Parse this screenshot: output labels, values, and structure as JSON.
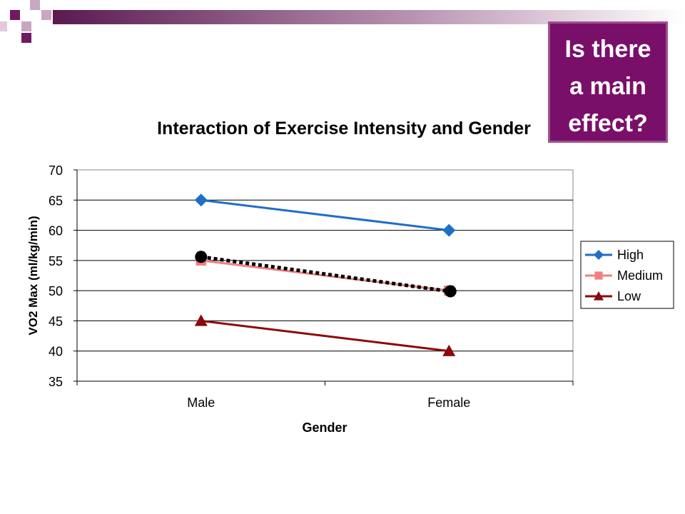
{
  "slide": {
    "colors": {
      "accent": "#7a0f6a",
      "bar_gradient_start": "#5a1a50",
      "callout_border": "#a0528f"
    }
  },
  "callout": {
    "lines": [
      "Is there",
      "a main",
      "effect?"
    ]
  },
  "chart_data": {
    "type": "line",
    "title": "Interaction of Exercise Intensity and Gender",
    "xlabel": "Gender",
    "ylabel": "VO2 Max (ml/kg/min)",
    "categories": [
      "Male",
      "Female"
    ],
    "ylim": [
      35,
      70
    ],
    "yticks": [
      35,
      40,
      45,
      50,
      55,
      60,
      65,
      70
    ],
    "grid": true,
    "legend_position": "right",
    "series": [
      {
        "name": "High",
        "values": [
          65,
          60
        ],
        "color": "#1f6fc4",
        "marker": "diamond"
      },
      {
        "name": "Medium",
        "values": [
          55,
          50
        ],
        "color": "#f08080",
        "marker": "square"
      },
      {
        "name": "Low",
        "values": [
          45,
          40
        ],
        "color": "#8b0a0a",
        "marker": "triangle"
      }
    ],
    "annotation_line": {
      "values": [
        55.6,
        49.9
      ],
      "color": "#000000",
      "style": "dotted",
      "marker": "circle"
    }
  }
}
